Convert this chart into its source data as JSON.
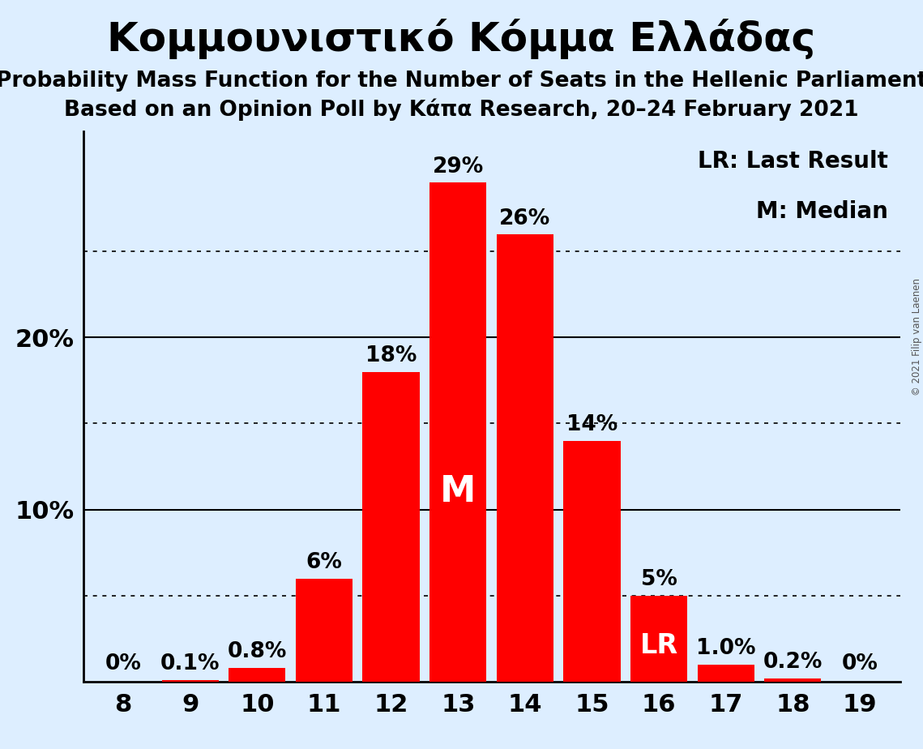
{
  "title": "Κομμουνιστικό Κόμμα Ελλάδας",
  "subtitle1": "Probability Mass Function for the Number of Seats in the Hellenic Parliament",
  "subtitle2": "Based on an Opinion Poll by Κάπα Research, 20–24 February 2021",
  "copyright": "© 2021 Filip van Laenen",
  "categories": [
    8,
    9,
    10,
    11,
    12,
    13,
    14,
    15,
    16,
    17,
    18,
    19
  ],
  "values": [
    0.0,
    0.1,
    0.8,
    6.0,
    18.0,
    29.0,
    26.0,
    14.0,
    5.0,
    1.0,
    0.2,
    0.0
  ],
  "bar_labels": [
    "0%",
    "0.1%",
    "0.8%",
    "6%",
    "18%",
    "29%",
    "26%",
    "14%",
    "5%",
    "1.0%",
    "0.2%",
    "0%"
  ],
  "median_seat": 13,
  "lr_seat": 16,
  "bar_color": "#FF0000",
  "background_color": "#ddeeff",
  "text_color": "#000000",
  "label_color_outside": "#000000",
  "label_color_inside": "#FFFFFF",
  "ylim": [
    0,
    32
  ],
  "yticks": [
    10,
    20
  ],
  "ytick_labels": [
    "10%",
    "20%"
  ],
  "dotted_lines": [
    5,
    15,
    25
  ],
  "solid_lines": [
    10,
    20
  ],
  "legend_lr": "LR: Last Result",
  "legend_m": "M: Median",
  "title_fontsize": 36,
  "subtitle_fontsize": 19,
  "label_fontsize": 19,
  "tick_fontsize": 22,
  "legend_fontsize": 20,
  "m_fontsize": 32,
  "lr_fontsize": 24
}
